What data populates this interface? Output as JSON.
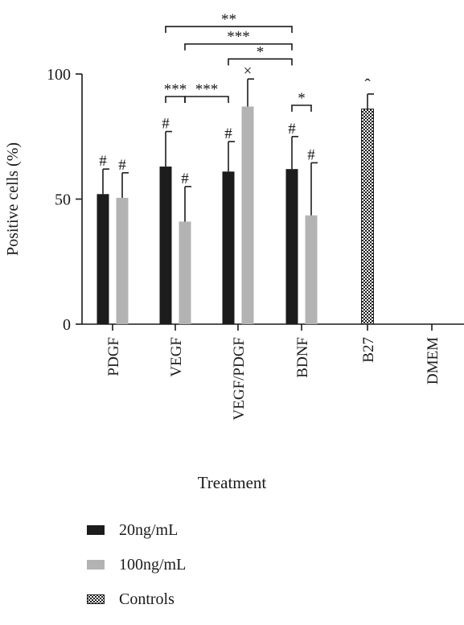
{
  "chart_data": {
    "type": "bar",
    "title": "",
    "xlabel": "Treatment",
    "ylabel": "Positive cells (%)",
    "ylim": [
      0,
      100
    ],
    "yticks": [
      0,
      50,
      100
    ],
    "categories": [
      "PDGF",
      "VEGF",
      "VEGF/PDGF",
      "BDNF",
      "B27",
      "DMEM"
    ],
    "series": [
      {
        "name": "20ng/mL",
        "color": "#1c1c1c",
        "pattern": "solid",
        "values": [
          52,
          63,
          61,
          62,
          null,
          null
        ],
        "errors": [
          10,
          14,
          12,
          13,
          null,
          null
        ],
        "marks": [
          "#",
          "#",
          "#",
          "#",
          "",
          ""
        ]
      },
      {
        "name": "100ng/mL",
        "color": "#b3b3b3",
        "pattern": "solid",
        "values": [
          50.5,
          41,
          87,
          43.5,
          null,
          null
        ],
        "errors": [
          10,
          14,
          11,
          21,
          null,
          null
        ],
        "marks": [
          "#",
          "#",
          "×",
          "#",
          "",
          ""
        ]
      },
      {
        "name": "Controls",
        "color": "#1c1c1c",
        "pattern": "checker",
        "values": [
          null,
          null,
          null,
          null,
          86,
          null
        ],
        "errors": [
          null,
          null,
          null,
          null,
          6,
          null
        ],
        "marks": [
          "",
          "",
          "",
          "",
          "ˆ",
          ""
        ]
      }
    ],
    "significance": [
      {
        "label": "**",
        "from": [
          1,
          0
        ],
        "to": [
          3,
          0
        ],
        "y": 119
      },
      {
        "label": "***",
        "from": [
          1,
          1
        ],
        "to": [
          3,
          0
        ],
        "y": 112
      },
      {
        "label": "*",
        "from": [
          2,
          0
        ],
        "to": [
          3,
          0
        ],
        "y": 106
      },
      {
        "label": "***",
        "from": [
          1,
          0
        ],
        "to": [
          1,
          1
        ],
        "y": 91
      },
      {
        "label": "***",
        "from": [
          1,
          1
        ],
        "to": [
          2,
          0
        ],
        "y": 91
      },
      {
        "label": "*",
        "from": [
          3,
          0
        ],
        "to": [
          3,
          1
        ],
        "y": 87.5
      }
    ],
    "legend_position": "bottom-left"
  }
}
